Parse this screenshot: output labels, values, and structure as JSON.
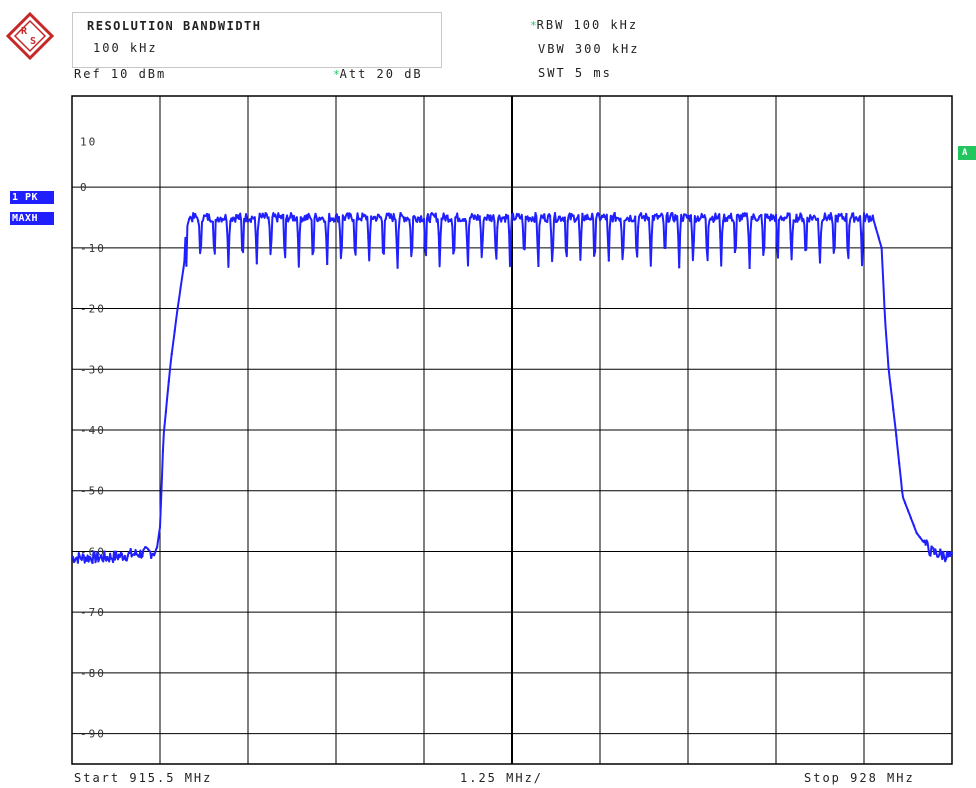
{
  "header": {
    "resolution_title": "RESOLUTION BANDWIDTH",
    "resolution_value": "100 kHz",
    "rbw": "RBW 100 kHz",
    "vbw": "VBW 300 kHz",
    "swt": "SWT 5 ms",
    "ref": "Ref  10 dBm",
    "att": "Att  20 dB",
    "star": "*"
  },
  "side_labels": {
    "trace_mode_1": "1 PK",
    "trace_mode_2": "MAXH",
    "right_marker": "A"
  },
  "footer": {
    "start": "Start 915.5 MHz",
    "span_per_div": "1.25 MHz/",
    "stop": "Stop 928 MHz"
  },
  "colors": {
    "trace": "#1f1fff",
    "grid": "#000000",
    "accent_green": "#22c55e",
    "logo_red": "#c62828"
  },
  "chart_data": {
    "type": "line",
    "x_start_mhz": 915.5,
    "x_stop_mhz": 928,
    "ylim": [
      -95,
      15
    ],
    "y_ticks": [
      10,
      0,
      -10,
      -20,
      -30,
      -40,
      -50,
      -60,
      -70,
      -80,
      -90
    ],
    "series": [
      {
        "x": [
          915.5,
          916.0,
          916.7,
          916.75,
          916.8,
          916.9,
          917.0,
          917.1,
          917.15,
          917.2,
          917.3,
          918.0,
          920.0,
          922.0,
          924.0,
          926.0,
          926.8,
          926.9,
          927.0,
          927.05,
          927.1,
          927.2,
          927.3,
          927.5,
          927.7,
          928.0
        ],
        "values": [
          -61,
          -61,
          -60,
          -56,
          -41,
          -29,
          -20,
          -12,
          -6,
          -6,
          -7,
          -8,
          -8,
          -8,
          -8,
          -8,
          -6,
          -6,
          -10,
          -22,
          -30,
          -40,
          -51,
          -57,
          -60,
          -61
        ]
      }
    ]
  }
}
